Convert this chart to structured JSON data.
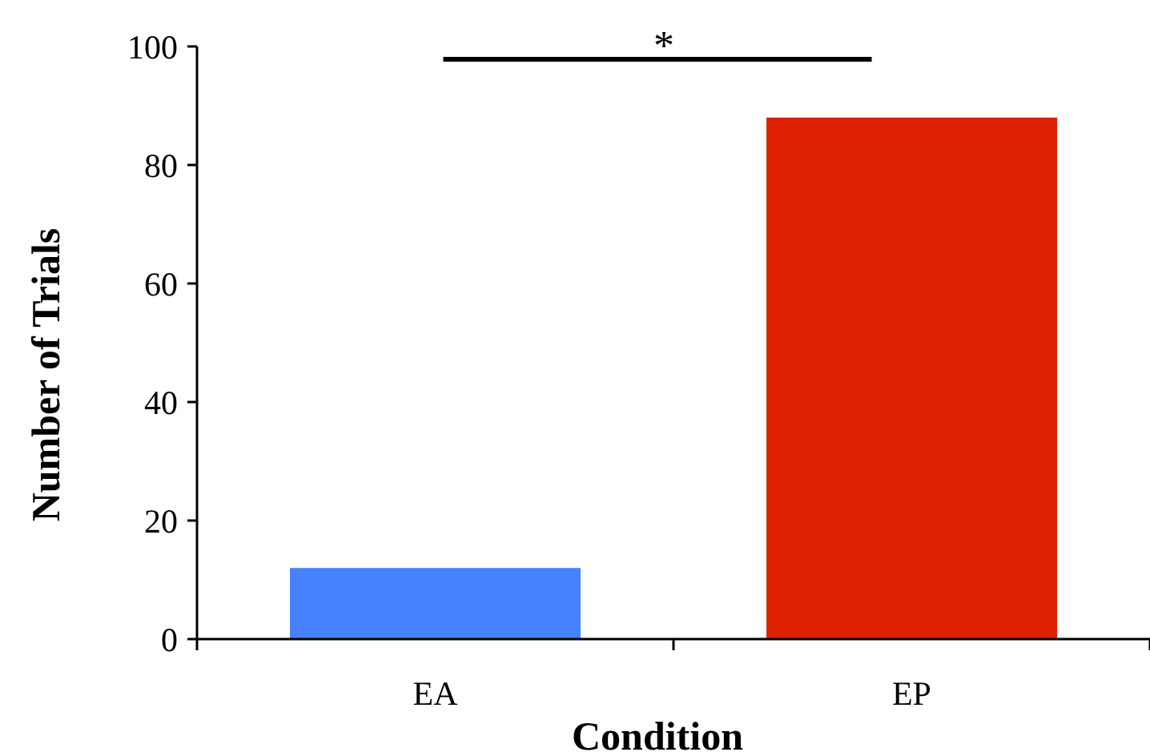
{
  "chart_data": {
    "type": "bar",
    "xlabel": "Condition",
    "ylabel": "Number of Trials",
    "categories": [
      "EA",
      "EP"
    ],
    "values": [
      12,
      88
    ],
    "colors": [
      "#4682fe",
      "#dd2000"
    ],
    "ylim": [
      0,
      100
    ],
    "yticks": [
      0,
      20,
      40,
      60,
      80,
      100
    ],
    "grid": false,
    "annotations": [
      "*"
    ]
  }
}
